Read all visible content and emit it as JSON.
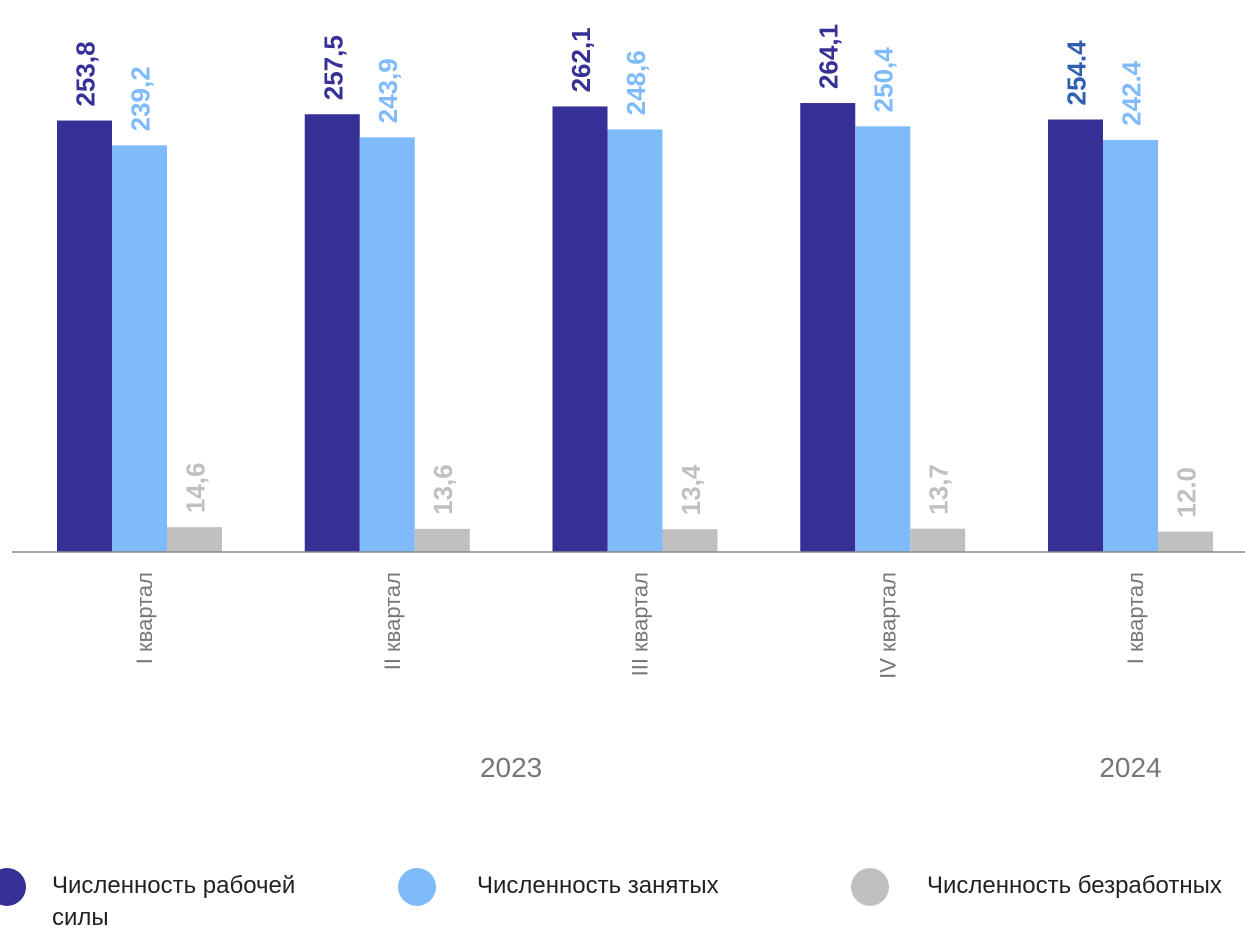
{
  "colors": {
    "labor_force": "#363096",
    "labor_force_label_2024": "#2f5fb0",
    "employed": "#7fbbfb",
    "unemployed": "#c0c0c0",
    "axis": "#888888",
    "category_text": "#777777"
  },
  "chart_data": {
    "type": "bar",
    "title": "",
    "xlabel": "",
    "ylabel": "",
    "ylim": [
      0,
      275
    ],
    "grid": false,
    "legend_position": "bottom",
    "categories": [
      "I квартал",
      "II квартал",
      "III квартал",
      "IV квартал",
      "I квартал"
    ],
    "years": [
      {
        "label": "2023",
        "categories": 4
      },
      {
        "label": "2024",
        "categories": 1
      }
    ],
    "series": [
      {
        "name": "Численность рабочей силы",
        "values": [
          253.8,
          257.5,
          262.1,
          264.1,
          254.4
        ],
        "data_labels": [
          "253,8",
          "257,5",
          "262,1",
          "264,1",
          "254.4"
        ]
      },
      {
        "name": "Численность занятых",
        "values": [
          239.2,
          243.9,
          248.6,
          250.4,
          242.4
        ],
        "data_labels": [
          "239,2",
          "243,9",
          "248,6",
          "250,4",
          "242.4"
        ]
      },
      {
        "name": "Численность безработных",
        "values": [
          14.6,
          13.6,
          13.4,
          13.7,
          12.0
        ],
        "data_labels": [
          "14,6",
          "13,6",
          "13,4",
          "13,7",
          "12.0"
        ]
      }
    ]
  },
  "legend": {
    "items": [
      {
        "label": "Численность рабочей силы",
        "color_key": "labor_force"
      },
      {
        "label": "Численность занятых",
        "color_key": "employed"
      },
      {
        "label": "Численность безработных",
        "color_key": "unemployed"
      }
    ]
  }
}
